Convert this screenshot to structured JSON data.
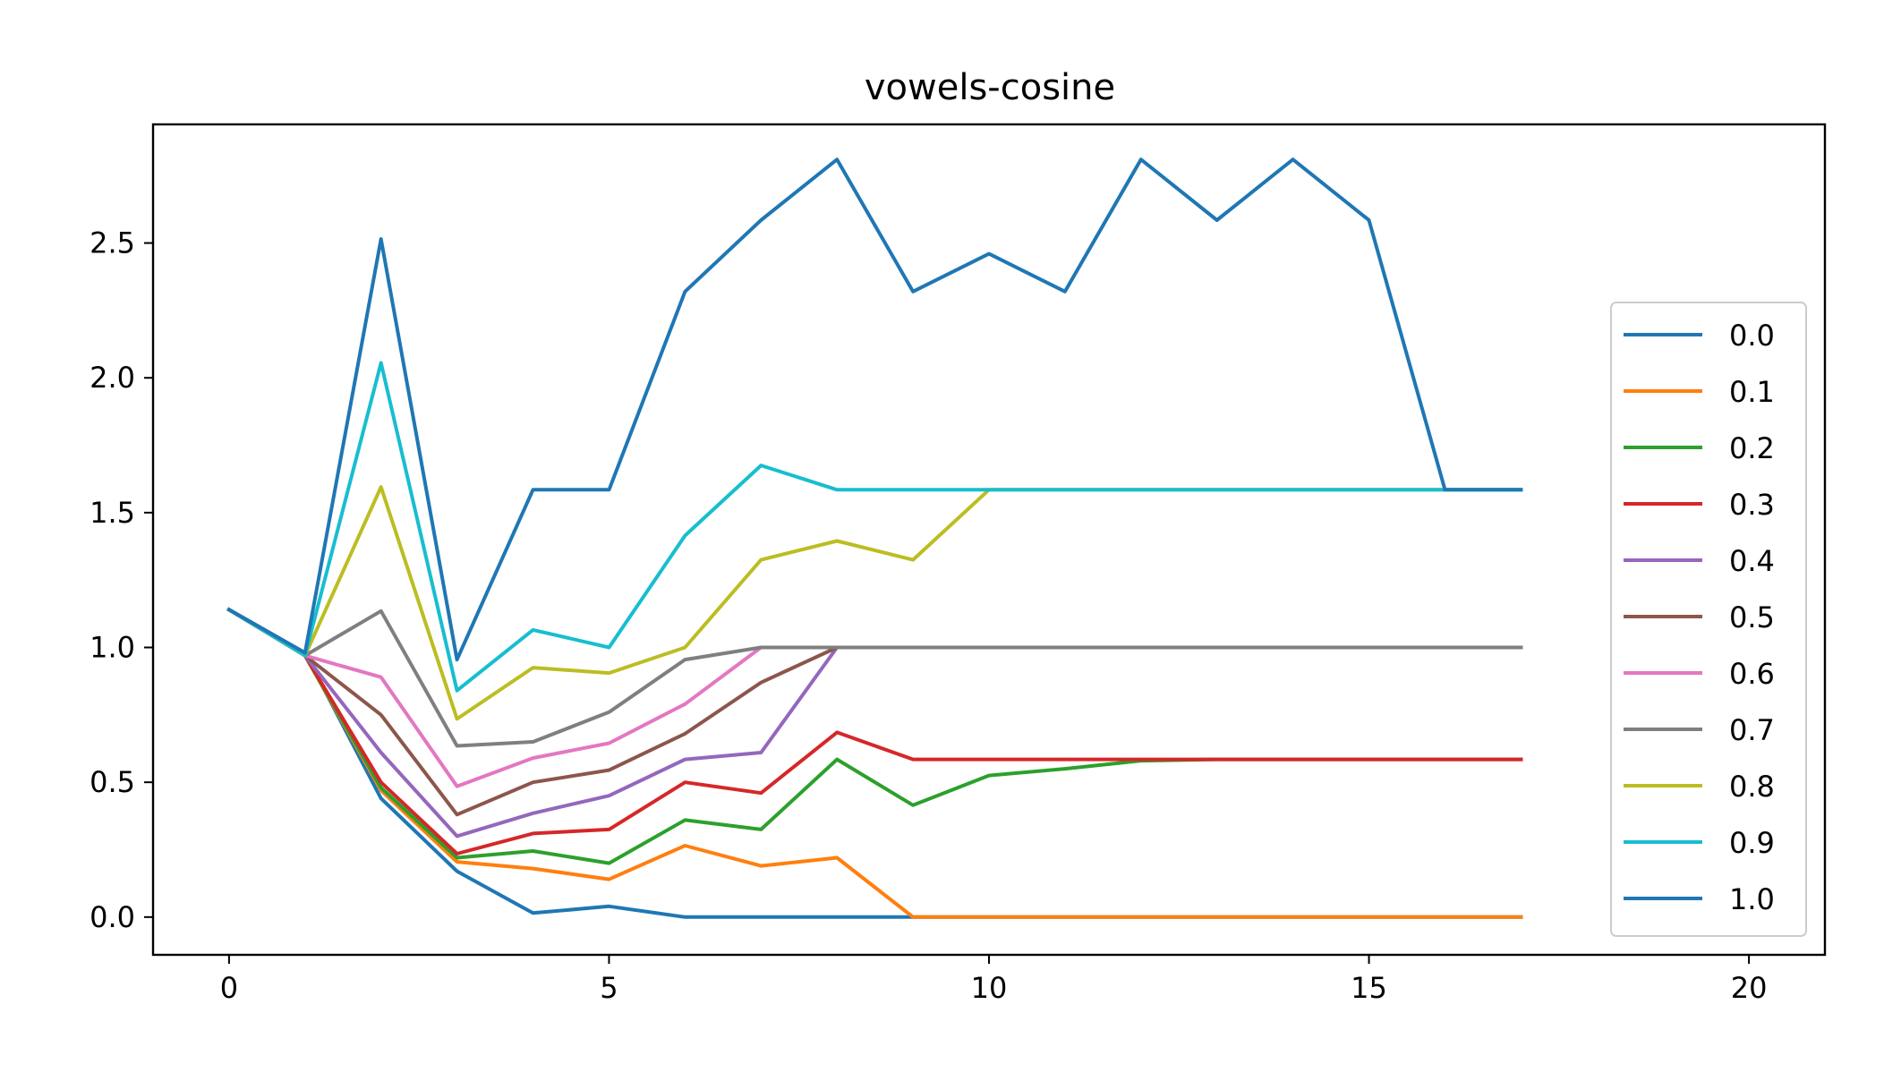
{
  "chart_data": {
    "type": "line",
    "title": "vowels-cosine",
    "xlabel": "",
    "ylabel": "",
    "xlim": [
      -1,
      21
    ],
    "ylim": [
      -0.14,
      2.94
    ],
    "xticks": [
      0,
      5,
      10,
      15,
      20
    ],
    "yticks": [
      0.0,
      0.5,
      1.0,
      1.5,
      2.0,
      2.5
    ],
    "xtick_labels": [
      "0",
      "5",
      "10",
      "15",
      "20"
    ],
    "ytick_labels": [
      "0.0",
      "0.5",
      "1.0",
      "1.5",
      "2.0",
      "2.5"
    ],
    "grid": false,
    "legend_position": "lower-right",
    "x": [
      0,
      1,
      2,
      3,
      4,
      5,
      6,
      7,
      8,
      9,
      10,
      11,
      12,
      13,
      14,
      15,
      16,
      17
    ],
    "series": [
      {
        "name": "0.0",
        "color": "#1f77b4",
        "values": [
          1.14,
          0.98,
          0.44,
          0.17,
          0.015,
          0.04,
          0.0,
          0.0,
          0.0,
          0.0,
          0.0,
          0.0,
          0.0,
          0.0,
          0.0,
          0.0,
          0.0,
          0.0
        ]
      },
      {
        "name": "0.1",
        "color": "#ff7f0e",
        "values": [
          1.14,
          0.97,
          0.47,
          0.205,
          0.18,
          0.14,
          0.265,
          0.19,
          0.22,
          0.0,
          0.0,
          0.0,
          0.0,
          0.0,
          0.0,
          0.0,
          0.0,
          0.0
        ]
      },
      {
        "name": "0.2",
        "color": "#2ca02c",
        "values": [
          1.14,
          0.97,
          0.48,
          0.22,
          0.245,
          0.2,
          0.36,
          0.325,
          0.585,
          0.415,
          0.525,
          0.55,
          0.58,
          0.585,
          0.585,
          0.585,
          0.585,
          0.585
        ]
      },
      {
        "name": "0.3",
        "color": "#d62728",
        "values": [
          1.14,
          0.97,
          0.5,
          0.235,
          0.31,
          0.325,
          0.5,
          0.46,
          0.685,
          0.585,
          0.585,
          0.585,
          0.585,
          0.585,
          0.585,
          0.585,
          0.585,
          0.585
        ]
      },
      {
        "name": "0.4",
        "color": "#9467bd",
        "values": [
          1.14,
          0.97,
          0.61,
          0.3,
          0.385,
          0.45,
          0.585,
          0.61,
          1.0,
          1.0,
          1.0,
          1.0,
          1.0,
          1.0,
          1.0,
          1.0,
          1.0,
          1.0
        ]
      },
      {
        "name": "0.5",
        "color": "#8c564b",
        "values": [
          1.14,
          0.97,
          0.75,
          0.38,
          0.5,
          0.545,
          0.68,
          0.87,
          1.0,
          1.0,
          1.0,
          1.0,
          1.0,
          1.0,
          1.0,
          1.0,
          1.0,
          1.0
        ]
      },
      {
        "name": "0.6",
        "color": "#e377c2",
        "values": [
          1.14,
          0.97,
          0.89,
          0.485,
          0.59,
          0.645,
          0.79,
          1.0,
          1.0,
          1.0,
          1.0,
          1.0,
          1.0,
          1.0,
          1.0,
          1.0,
          1.0,
          1.0
        ]
      },
      {
        "name": "0.7",
        "color": "#7f7f7f",
        "values": [
          1.14,
          0.97,
          1.135,
          0.635,
          0.65,
          0.76,
          0.955,
          1.0,
          1.0,
          1.0,
          1.0,
          1.0,
          1.0,
          1.0,
          1.0,
          1.0,
          1.0,
          1.0
        ]
      },
      {
        "name": "0.8",
        "color": "#bcbd22",
        "values": [
          1.14,
          0.97,
          1.595,
          0.735,
          0.925,
          0.905,
          1.0,
          1.325,
          1.395,
          1.325,
          1.585,
          1.585,
          1.585,
          1.585,
          1.585,
          1.585,
          1.585,
          1.585
        ]
      },
      {
        "name": "0.9",
        "color": "#17becf",
        "values": [
          1.14,
          0.97,
          2.055,
          0.84,
          1.065,
          1.0,
          1.415,
          1.675,
          1.585,
          1.585,
          1.585,
          1.585,
          1.585,
          1.585,
          1.585,
          1.585,
          1.585,
          1.585
        ]
      },
      {
        "name": "1.0",
        "color": "#1f77b4",
        "values": [
          1.14,
          0.98,
          2.515,
          0.955,
          1.585,
          1.585,
          2.32,
          2.585,
          2.81,
          2.32,
          2.46,
          2.32,
          2.81,
          2.585,
          2.81,
          2.585,
          1.585,
          1.585
        ]
      }
    ]
  }
}
